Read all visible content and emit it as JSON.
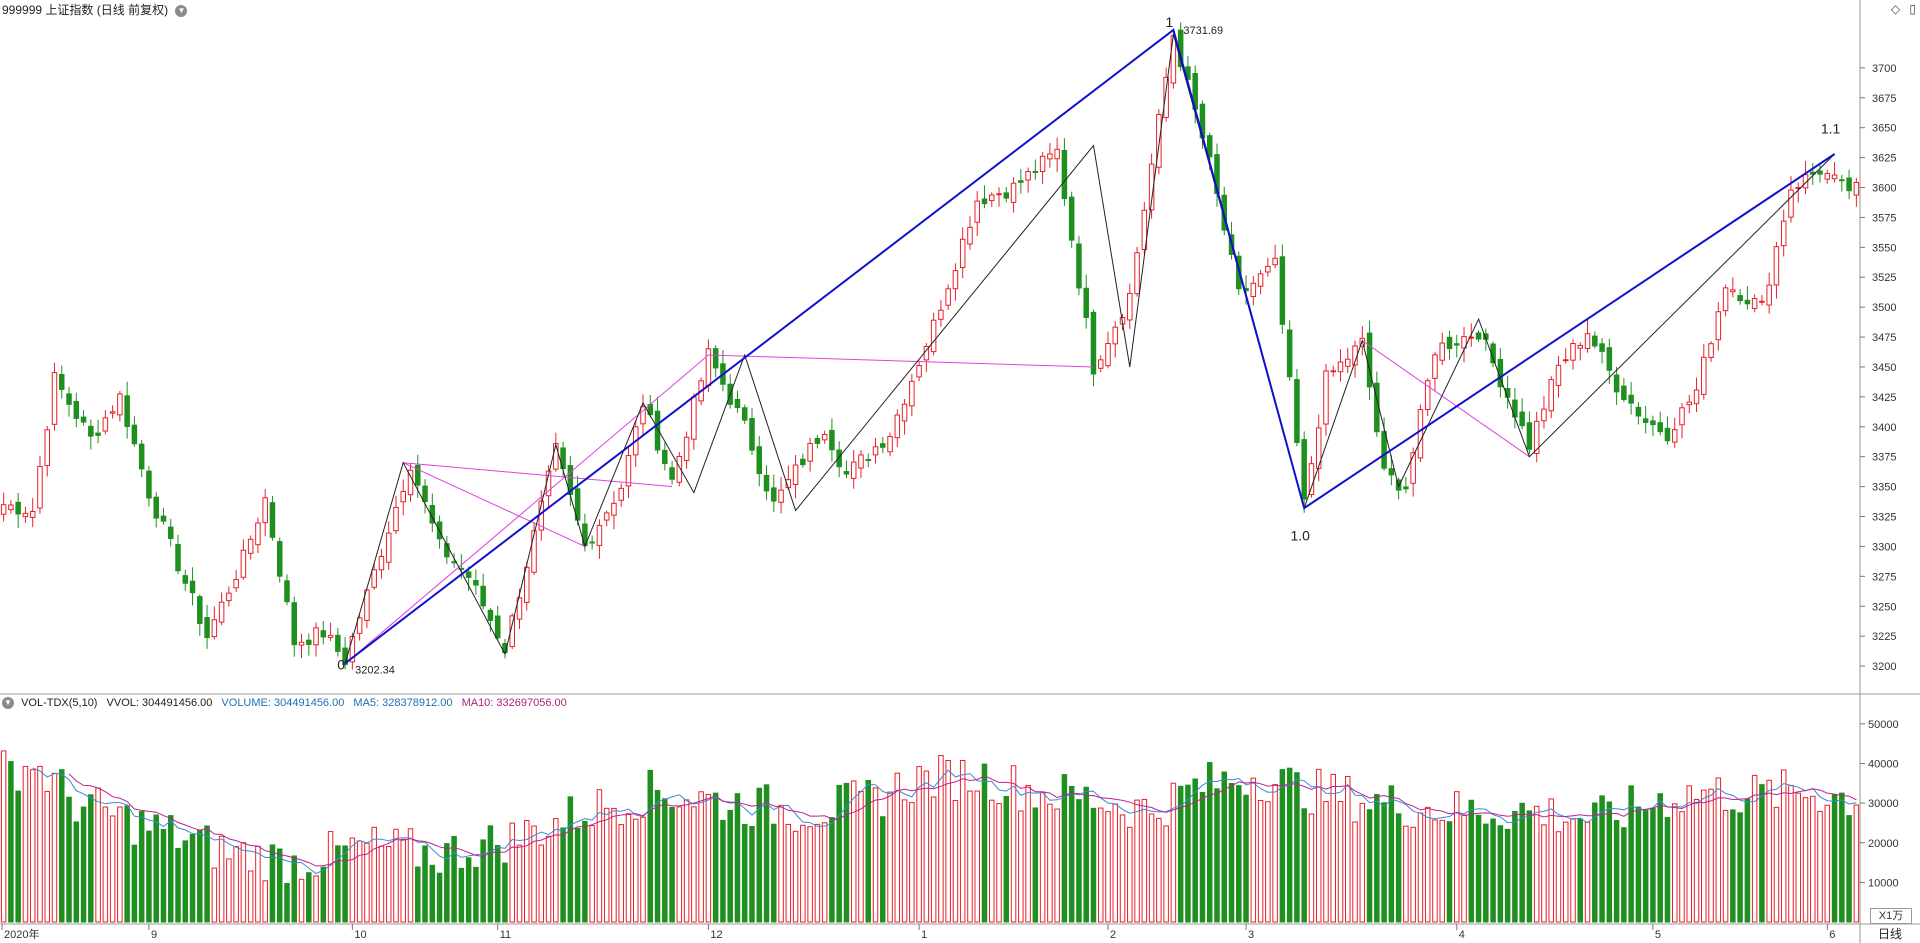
{
  "header": {
    "code": "999999",
    "name": "上证指数",
    "mode": "(日线 前复权)"
  },
  "toolbar": {
    "diamond_icon": "◇",
    "panel_icon": "▯"
  },
  "volume_indicator": {
    "name": "VOL-TDX(5,10)",
    "vvol": "VVOL: 304491456.00",
    "volume": "VOLUME: 304491456.00",
    "ma5": "MA5: 328378912.00",
    "ma10": "MA10: 332697056.00"
  },
  "colors": {
    "up": "#e8202a",
    "down": "#1f8f1f",
    "wave_main": "#1010d0",
    "wave_minor": "#222222",
    "wave_magenta": "#e040e0",
    "ma5": "#3a8ad6",
    "ma10": "#c0208e"
  },
  "price_axis": {
    "range": [
      3180,
      3740
    ],
    "ticks": [
      "3700",
      "3675",
      "3650",
      "3625",
      "3600",
      "3575",
      "3550",
      "3525",
      "3500",
      "3475",
      "3450",
      "3425",
      "3400",
      "3375",
      "3350",
      "3325",
      "3300",
      "3275",
      "3250",
      "3225",
      "3200"
    ]
  },
  "volume_axis": {
    "range": [
      0,
      53000
    ],
    "ticks": [
      "50000",
      "40000",
      "30000",
      "20000",
      "10000"
    ],
    "unit": "X1万"
  },
  "date_axis": [
    {
      "label": "2020年",
      "index": 0
    },
    {
      "label": "9",
      "index": 20
    },
    {
      "label": "10",
      "index": 48
    },
    {
      "label": "11",
      "index": 68
    },
    {
      "label": "12",
      "index": 97
    },
    {
      "label": "1",
      "index": 126
    },
    {
      "label": "2",
      "index": 152
    },
    {
      "label": "3",
      "index": 171
    },
    {
      "label": "4",
      "index": 200
    },
    {
      "label": "5",
      "index": 227
    },
    {
      "label": "6",
      "index": 251
    }
  ],
  "annotations": {
    "low_value": "3202.34",
    "high_value": "3731.69",
    "wave_labels": [
      {
        "text": "0",
        "index": 47,
        "price": 3202
      },
      {
        "text": "1",
        "index": 161,
        "price": 3731
      },
      {
        "text": "1.0",
        "index": 179,
        "price": 3320
      },
      {
        "text": "1.1",
        "index": 252,
        "price": 3642
      }
    ]
  },
  "period_button": "日线",
  "chart_data": {
    "type": "candlestick",
    "series_count": 256,
    "anchors": [
      [
        0,
        3335
      ],
      [
        4,
        3330
      ],
      [
        7,
        3440
      ],
      [
        12,
        3390
      ],
      [
        16,
        3425
      ],
      [
        20,
        3345
      ],
      [
        28,
        3225
      ],
      [
        33,
        3290
      ],
      [
        36,
        3340
      ],
      [
        40,
        3220
      ],
      [
        44,
        3228
      ],
      [
        47,
        3205
      ],
      [
        56,
        3370
      ],
      [
        60,
        3300
      ],
      [
        64,
        3275
      ],
      [
        69,
        3215
      ],
      [
        76,
        3380
      ],
      [
        80,
        3300
      ],
      [
        85,
        3350
      ],
      [
        88,
        3420
      ],
      [
        92,
        3355
      ],
      [
        97,
        3460
      ],
      [
        102,
        3400
      ],
      [
        106,
        3335
      ],
      [
        113,
        3400
      ],
      [
        116,
        3360
      ],
      [
        122,
        3395
      ],
      [
        128,
        3485
      ],
      [
        134,
        3590
      ],
      [
        139,
        3600
      ],
      [
        145,
        3630
      ],
      [
        150,
        3450
      ],
      [
        155,
        3510
      ],
      [
        161,
        3728
      ],
      [
        166,
        3620
      ],
      [
        170,
        3510
      ],
      [
        175,
        3535
      ],
      [
        179,
        3335
      ],
      [
        182,
        3440
      ],
      [
        187,
        3470
      ],
      [
        190,
        3360
      ],
      [
        193,
        3350
      ],
      [
        197,
        3465
      ],
      [
        203,
        3480
      ],
      [
        206,
        3440
      ],
      [
        210,
        3385
      ],
      [
        214,
        3450
      ],
      [
        218,
        3480
      ],
      [
        222,
        3435
      ],
      [
        226,
        3405
      ],
      [
        229,
        3395
      ],
      [
        233,
        3430
      ],
      [
        237,
        3520
      ],
      [
        242,
        3500
      ],
      [
        246,
        3600
      ],
      [
        250,
        3615
      ],
      [
        253,
        3600
      ],
      [
        255,
        3598
      ]
    ],
    "volume_anchors": [
      [
        0,
        38000
      ],
      [
        4,
        40000
      ],
      [
        10,
        30000
      ],
      [
        20,
        24000
      ],
      [
        30,
        18000
      ],
      [
        40,
        15000
      ],
      [
        50,
        19000
      ],
      [
        60,
        17000
      ],
      [
        70,
        21000
      ],
      [
        80,
        28000
      ],
      [
        90,
        33000
      ],
      [
        100,
        30000
      ],
      [
        110,
        28000
      ],
      [
        118,
        30000
      ],
      [
        126,
        36000
      ],
      [
        134,
        37000
      ],
      [
        142,
        33000
      ],
      [
        150,
        31000
      ],
      [
        158,
        28000
      ],
      [
        164,
        34000
      ],
      [
        172,
        37000
      ],
      [
        180,
        33000
      ],
      [
        190,
        30000
      ],
      [
        200,
        28000
      ],
      [
        210,
        28000
      ],
      [
        220,
        26000
      ],
      [
        228,
        31000
      ],
      [
        234,
        33000
      ],
      [
        240,
        32000
      ],
      [
        248,
        33000
      ],
      [
        255,
        31000
      ]
    ],
    "wave_main": [
      [
        47,
        3202.34
      ],
      [
        161,
        3731.69
      ],
      [
        179,
        3332
      ],
      [
        252,
        3628
      ]
    ],
    "wave_minor": [
      [
        47,
        3202
      ],
      [
        55,
        3370
      ],
      [
        69,
        3210
      ],
      [
        76,
        3385
      ],
      [
        80,
        3300
      ],
      [
        88,
        3420
      ],
      [
        95,
        3345
      ],
      [
        102,
        3460
      ],
      [
        109,
        3330
      ],
      [
        150,
        3635
      ],
      [
        155,
        3450
      ],
      [
        161,
        3728
      ],
      [
        179,
        3332
      ],
      [
        187,
        3472
      ],
      [
        192,
        3350
      ],
      [
        203,
        3490
      ],
      [
        210,
        3375
      ],
      [
        252,
        3628
      ]
    ],
    "wave_magenta": [
      [
        47,
        3202
      ],
      [
        97,
        3460
      ],
      [
        150,
        3450
      ],
      [
        55,
        3370
      ],
      [
        92,
        3350
      ],
      [
        55,
        3370
      ],
      [
        80,
        3300
      ],
      [
        187,
        3472
      ],
      [
        210,
        3375
      ]
    ]
  }
}
